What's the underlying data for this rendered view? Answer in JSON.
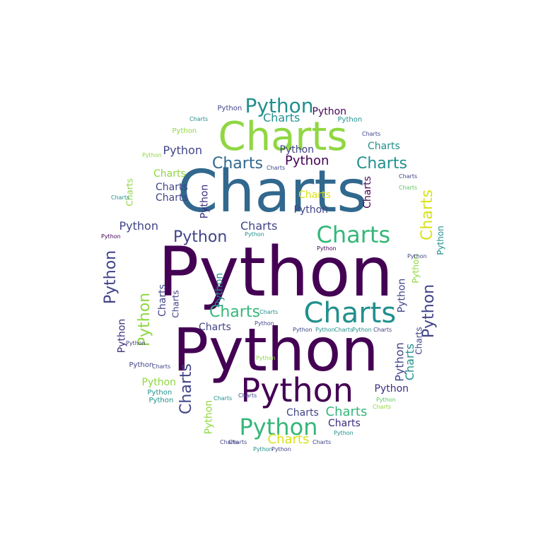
{
  "words": [
    {
      "text": "Python",
      "color": "#440154"
    },
    {
      "text": "Charts",
      "color": "#21908d"
    }
  ],
  "palette": {
    "dark_purple": "#440154",
    "purple": "#3b2c7c",
    "indigo": "#414487",
    "blue": "#31688e",
    "teal": "#21908d",
    "green": "#35b779",
    "light_green": "#5ec962",
    "lime": "#90d743",
    "yellow": "#d8e219"
  }
}
